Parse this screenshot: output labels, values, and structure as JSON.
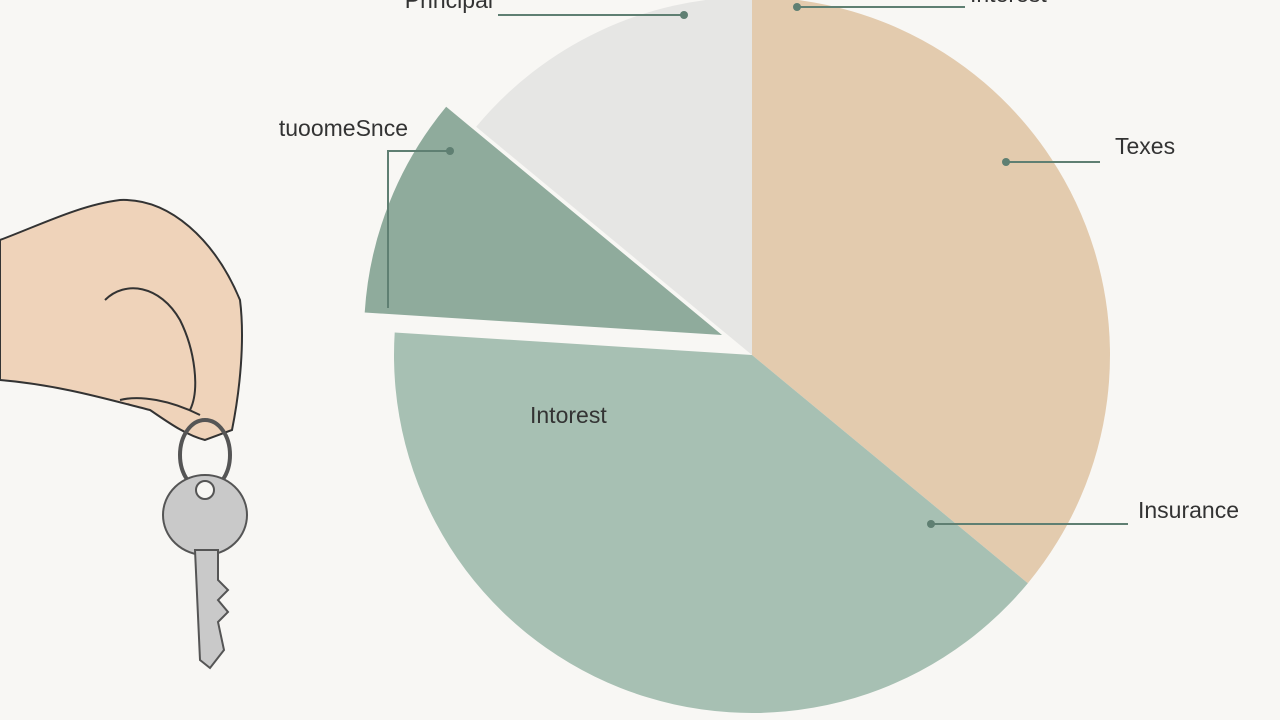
{
  "chart_data": {
    "type": "pie",
    "categories": [
      "Texes",
      "Intorest",
      "tuoomeSnce",
      "Principal"
    ],
    "values": [
      36,
      40,
      10,
      14
    ],
    "colors": [
      "#e3cbae",
      "#a7c0b3",
      "#8fab9c",
      "#e6e6e4"
    ],
    "annotations": [
      "Interest",
      "Insurance"
    ]
  }
}
